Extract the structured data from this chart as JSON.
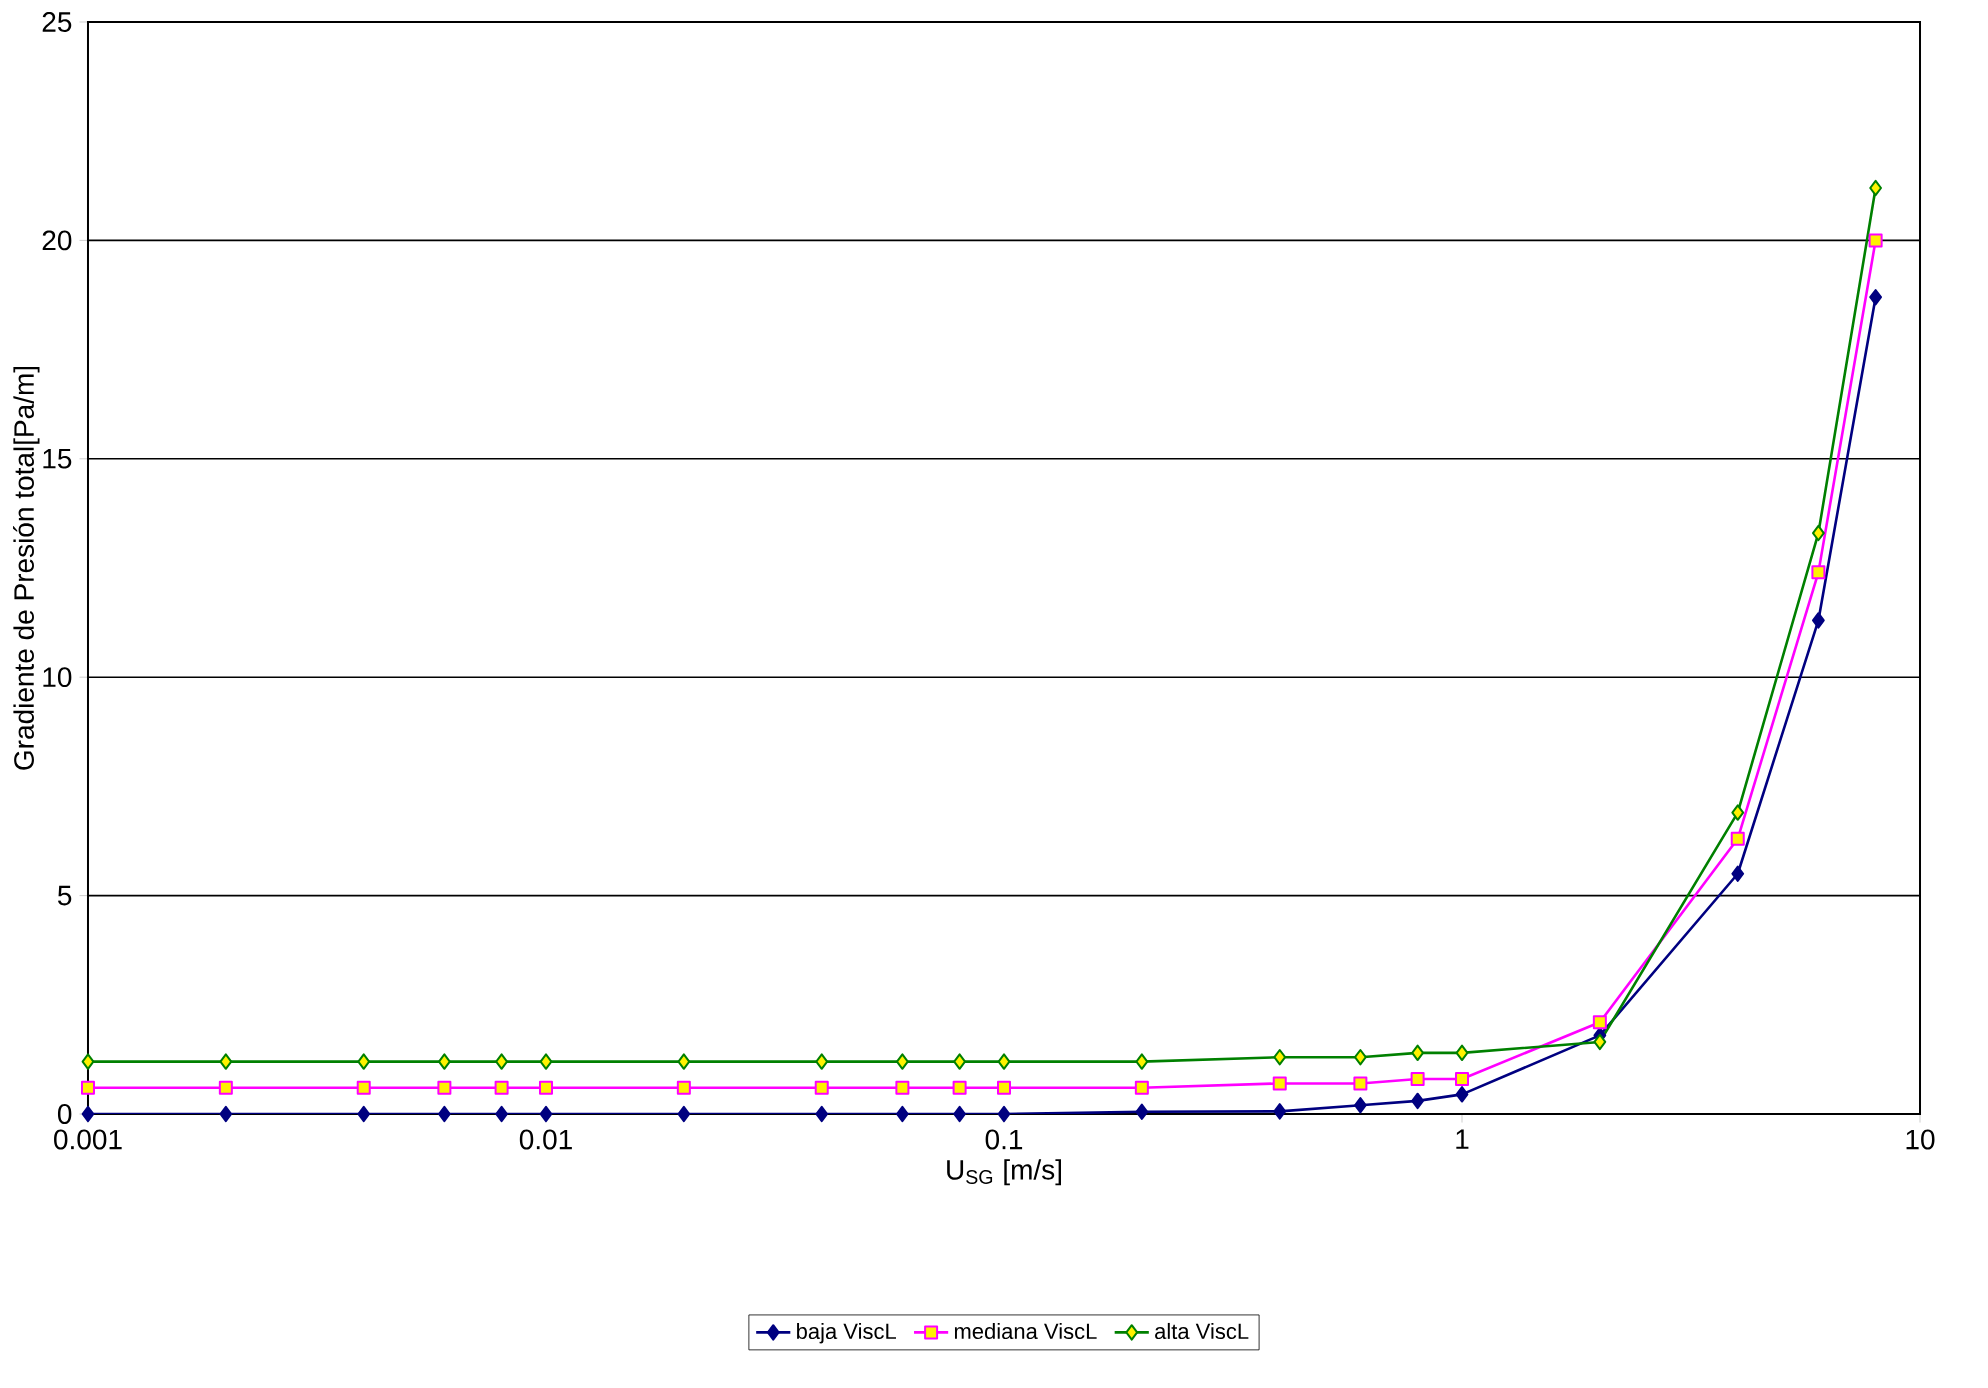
{
  "chart_data": {
    "type": "line",
    "xlabel": "U$_{SG}$ [m/s]",
    "ylabel": "Gradiente de Presión total[Pa/m]",
    "x": [
      0.001,
      0.002,
      0.004,
      0.006,
      0.008,
      0.01,
      0.02,
      0.04,
      0.06,
      0.08,
      0.1,
      0.2,
      0.4,
      0.6,
      0.8,
      1,
      2,
      4,
      6,
      8
    ],
    "series": [
      {
        "name": "baja ViscL",
        "color": "#000080",
        "marker": "diamond",
        "values": [
          0,
          0,
          0,
          0,
          0,
          0,
          0,
          0,
          0,
          0,
          0,
          0.05,
          0.06,
          0.2,
          0.3,
          0.45,
          1.8,
          5.5,
          11.3,
          18.7
        ]
      },
      {
        "name": "mediana ViscL",
        "color": "#ff00ff",
        "marker": "square",
        "values": [
          0.6,
          0.6,
          0.6,
          0.6,
          0.6,
          0.6,
          0.6,
          0.6,
          0.6,
          0.6,
          0.6,
          0.6,
          0.7,
          0.7,
          0.8,
          0.8,
          2.1,
          6.3,
          12.4,
          20.0
        ]
      },
      {
        "name": "alta ViscL",
        "color": "#008000",
        "marker": "diamond",
        "values": [
          1.2,
          1.2,
          1.2,
          1.2,
          1.2,
          1.2,
          1.2,
          1.2,
          1.2,
          1.2,
          1.2,
          1.2,
          1.3,
          1.3,
          1.4,
          1.4,
          1.65,
          6.9,
          13.3,
          21.2
        ]
      }
    ],
    "log": "x",
    "xlim": [
      0.001,
      10
    ],
    "xticks": [
      {
        "value": 0.001,
        "label": "0.001"
      },
      {
        "value": 0.01,
        "label": "0.01"
      },
      {
        "value": 0.1,
        "label": "0.1"
      },
      {
        "value": 1,
        "label": "1"
      },
      {
        "value": 10,
        "label": "10"
      }
    ],
    "ylim": [
      0,
      25
    ],
    "yticks": [
      0,
      5,
      10,
      15,
      20,
      25
    ],
    "grid": "y",
    "legend": "bottom",
    "line_style": "solid"
  }
}
